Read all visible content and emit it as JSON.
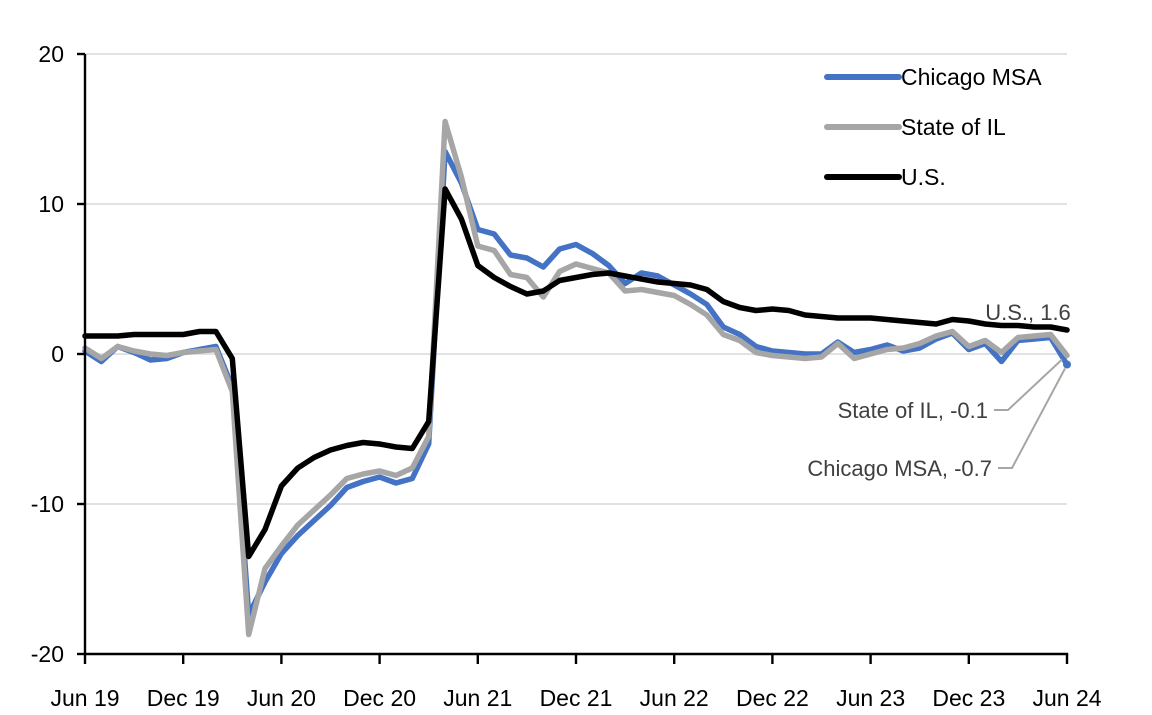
{
  "chart": {
    "background": "#FFFFFF",
    "axis_color": "#000000",
    "gridline_color": "#D9D9D9",
    "leader_line_color": "#A6A6A6",
    "annotation_text_color": "#404040",
    "legend": {
      "position": "top-right-inside",
      "items": [
        {
          "label": "Chicago MSA",
          "color": "#4472C4"
        },
        {
          "label": "State of IL",
          "color": "#A6A6A6"
        },
        {
          "label": "U.S.",
          "color": "#000000"
        }
      ]
    },
    "annotations": [
      {
        "id": "us",
        "text": "U.S., 1.6"
      },
      {
        "id": "il",
        "text": "State of IL, -0.1"
      },
      {
        "id": "chicago",
        "text": "Chicago MSA, -0.7"
      }
    ]
  },
  "chart_data": {
    "type": "line",
    "title": "",
    "xlabel": "",
    "ylabel": "",
    "ylim": [
      -20,
      20
    ],
    "y_ticks": [
      20,
      10,
      0,
      -10,
      -20
    ],
    "x_tick_labels": [
      "Jun 19",
      "Dec 19",
      "Jun 20",
      "Dec 20",
      "Jun 21",
      "Dec 21",
      "Jun 22",
      "Dec 22",
      "Jun 23",
      "Dec 23",
      "Jun 24"
    ],
    "grid": "horizontal",
    "legend_position": "top-right-inside",
    "x_months": [
      "2019-06",
      "2019-07",
      "2019-08",
      "2019-09",
      "2019-10",
      "2019-11",
      "2019-12",
      "2020-01",
      "2020-02",
      "2020-03",
      "2020-04",
      "2020-05",
      "2020-06",
      "2020-07",
      "2020-08",
      "2020-09",
      "2020-10",
      "2020-11",
      "2020-12",
      "2021-01",
      "2021-02",
      "2021-03",
      "2021-04",
      "2021-05",
      "2021-06",
      "2021-07",
      "2021-08",
      "2021-09",
      "2021-10",
      "2021-11",
      "2021-12",
      "2022-01",
      "2022-02",
      "2022-03",
      "2022-04",
      "2022-05",
      "2022-06",
      "2022-07",
      "2022-08",
      "2022-09",
      "2022-10",
      "2022-11",
      "2022-12",
      "2023-01",
      "2023-02",
      "2023-03",
      "2023-04",
      "2023-05",
      "2023-06",
      "2023-07",
      "2023-08",
      "2023-09",
      "2023-10",
      "2023-11",
      "2023-12",
      "2024-01",
      "2024-02",
      "2024-03",
      "2024-04",
      "2024-05",
      "2024-06"
    ],
    "series": [
      {
        "name": "Chicago MSA",
        "color": "#4472C4",
        "end_label": "Chicago MSA, -0.7",
        "end_value": -0.7,
        "values": [
          0.2,
          -0.5,
          0.5,
          0.1,
          -0.4,
          -0.3,
          0.1,
          0.3,
          0.5,
          -2.2,
          -17.4,
          -15.2,
          -13.3,
          -12.1,
          -11.1,
          -10.1,
          -8.9,
          -8.5,
          -8.2,
          -8.6,
          -8.3,
          -6.0,
          13.5,
          11.4,
          8.3,
          8.0,
          6.6,
          6.4,
          5.8,
          7.0,
          7.3,
          6.7,
          5.9,
          4.7,
          5.4,
          5.2,
          4.6,
          4.0,
          3.3,
          1.8,
          1.3,
          0.5,
          0.2,
          0.1,
          0.0,
          0.0,
          0.8,
          0.1,
          0.3,
          0.6,
          0.2,
          0.4,
          1.0,
          1.4,
          0.3,
          0.7,
          -0.5,
          0.9,
          1.0,
          1.1,
          -0.7
        ]
      },
      {
        "name": "State of IL",
        "color": "#A6A6A6",
        "end_label": "State of IL, -0.1",
        "end_value": -0.1,
        "values": [
          0.4,
          -0.3,
          0.5,
          0.2,
          0.0,
          -0.1,
          0.1,
          0.2,
          0.3,
          -2.5,
          -18.7,
          -14.3,
          -12.8,
          -11.4,
          -10.4,
          -9.4,
          -8.3,
          -8.0,
          -7.8,
          -8.1,
          -7.6,
          -5.5,
          15.5,
          11.8,
          7.2,
          6.9,
          5.3,
          5.1,
          3.8,
          5.5,
          6.0,
          5.7,
          5.4,
          4.2,
          4.3,
          4.1,
          3.9,
          3.3,
          2.6,
          1.3,
          0.9,
          0.1,
          -0.1,
          -0.2,
          -0.3,
          -0.2,
          0.7,
          -0.3,
          0.0,
          0.3,
          0.4,
          0.7,
          1.2,
          1.5,
          0.5,
          0.9,
          0.1,
          1.1,
          1.2,
          1.3,
          -0.1
        ]
      },
      {
        "name": "U.S.",
        "color": "#000000",
        "end_label": "U.S., 1.6",
        "end_value": 1.6,
        "values": [
          1.2,
          1.2,
          1.2,
          1.3,
          1.3,
          1.3,
          1.3,
          1.5,
          1.5,
          -0.3,
          -13.5,
          -11.7,
          -8.8,
          -7.6,
          -6.9,
          -6.4,
          -6.1,
          -5.9,
          -6.0,
          -6.2,
          -6.3,
          -4.5,
          11.0,
          9.0,
          5.9,
          5.1,
          4.5,
          4.0,
          4.2,
          4.9,
          5.1,
          5.3,
          5.4,
          5.2,
          5.0,
          4.8,
          4.7,
          4.6,
          4.3,
          3.5,
          3.1,
          2.9,
          3.0,
          2.9,
          2.6,
          2.5,
          2.4,
          2.4,
          2.4,
          2.3,
          2.2,
          2.1,
          2.0,
          2.3,
          2.2,
          2.0,
          1.9,
          1.9,
          1.8,
          1.8,
          1.6
        ]
      }
    ]
  }
}
